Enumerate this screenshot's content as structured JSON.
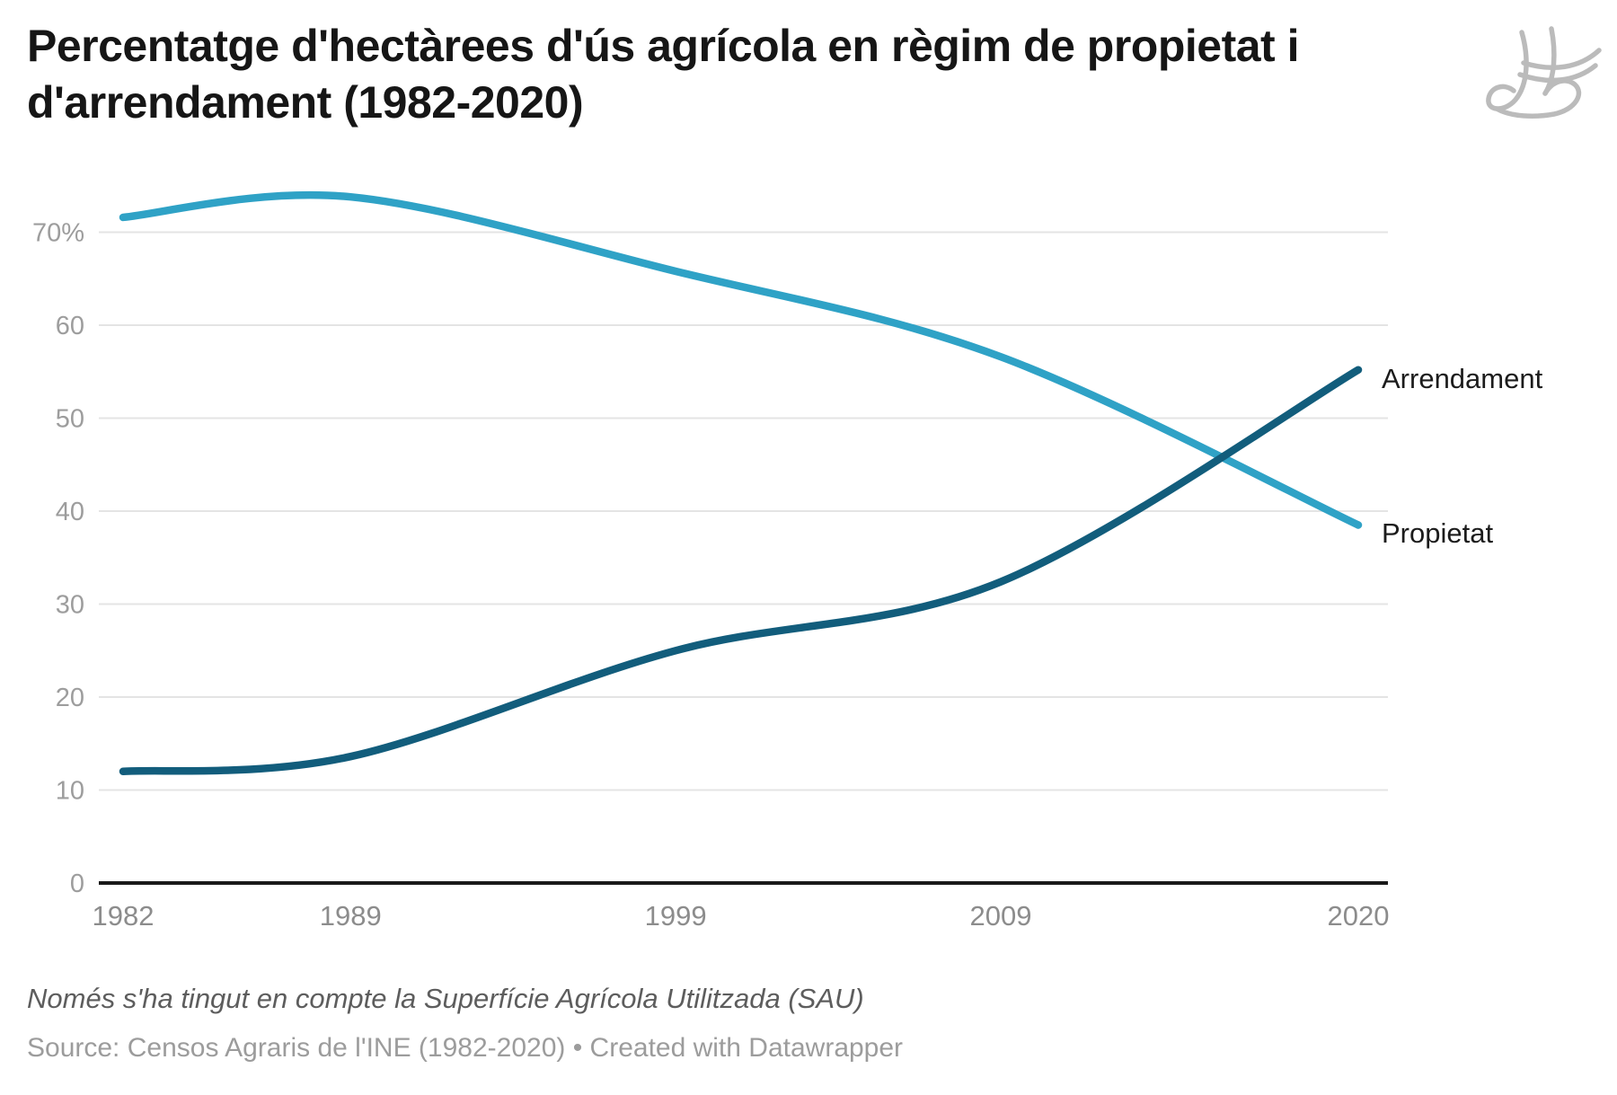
{
  "header": {
    "title_line1": "Percentatge d'hectàrees d'ús agrícola en règim de propietat i",
    "title_line2": "d'arrendament (1982-2020)"
  },
  "footer": {
    "note": "Només s'ha tingut en compte la Superfície Agrícola Utilitzada (SAU)",
    "source": "Source: Censos Agraris de l'INE (1982-2020) • Created with Datawrapper"
  },
  "watermark": "jb-signature-logo",
  "chart_data": {
    "type": "line",
    "title": "Percentatge d'hectàrees d'ús agrícola en règim de propietat i d'arrendament (1982-2020)",
    "x": [
      1982,
      1989,
      1999,
      2009,
      2020
    ],
    "x_tick_labels": [
      "1982",
      "1989",
      "1999",
      "2009",
      "2020"
    ],
    "series": [
      {
        "name": "Propietat",
        "color": "#2fa2c6",
        "values": [
          71.6,
          73.8,
          65.8,
          56.6,
          38.5
        ]
      },
      {
        "name": "Arrendament",
        "color": "#125d7c",
        "values": [
          12.0,
          13.6,
          25.0,
          32.4,
          55.2
        ]
      }
    ],
    "y_ticks": [
      {
        "value": 0,
        "label": "0"
      },
      {
        "value": 10,
        "label": "10"
      },
      {
        "value": 20,
        "label": "20"
      },
      {
        "value": 30,
        "label": "30"
      },
      {
        "value": 40,
        "label": "40"
      },
      {
        "value": 50,
        "label": "50"
      },
      {
        "value": 60,
        "label": "60"
      },
      {
        "value": 70,
        "label": "70%"
      }
    ],
    "ylim": [
      0,
      75
    ],
    "xlim": [
      1982,
      2020
    ],
    "grid": "horizontal",
    "legend_position": "direct-right-labels",
    "unit": "%"
  },
  "colors": {
    "propietat_line": "#2fa2c6",
    "arrendament_line": "#125d7c",
    "gridline": "#e4e4e4",
    "axis_baseline": "#191919",
    "y_tick_text": "#9d9d9d",
    "x_tick_text": "#8c8c8c",
    "title_text": "#161616",
    "note_text": "#5d5d5d",
    "source_text": "#9c9c9c",
    "watermark": "#8f8f8f"
  }
}
